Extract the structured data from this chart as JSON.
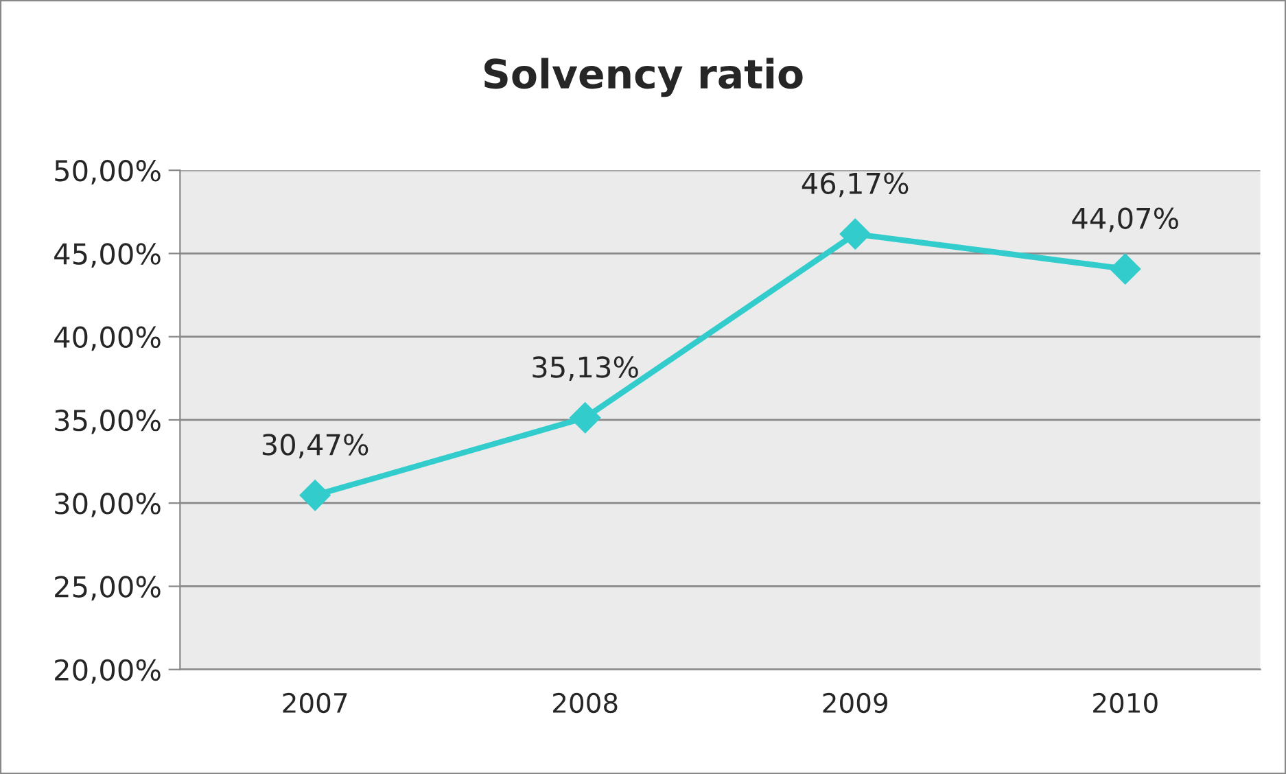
{
  "chart_data": {
    "type": "line",
    "title": "Solvency ratio",
    "categories": [
      "2007",
      "2008",
      "2009",
      "2010"
    ],
    "series": [
      {
        "color": "#33cccc",
        "values": [
          30.47,
          35.13,
          46.17,
          44.07
        ],
        "value_labels": [
          "30,47%",
          "35,13%",
          "46,17%",
          "44,07%"
        ]
      }
    ],
    "ylim": [
      20,
      50
    ],
    "yticks": [
      {
        "value": 20,
        "label": "20,00%"
      },
      {
        "value": 25,
        "label": "25,00%"
      },
      {
        "value": 30,
        "label": "30,00%"
      },
      {
        "value": 35,
        "label": "35,00%"
      },
      {
        "value": 40,
        "label": "40,00%"
      },
      {
        "value": 45,
        "label": "45,00%"
      },
      {
        "value": 50,
        "label": "50,00%"
      }
    ],
    "grid": "y",
    "marker": "diamond",
    "line_style": "solid",
    "legend": false
  }
}
